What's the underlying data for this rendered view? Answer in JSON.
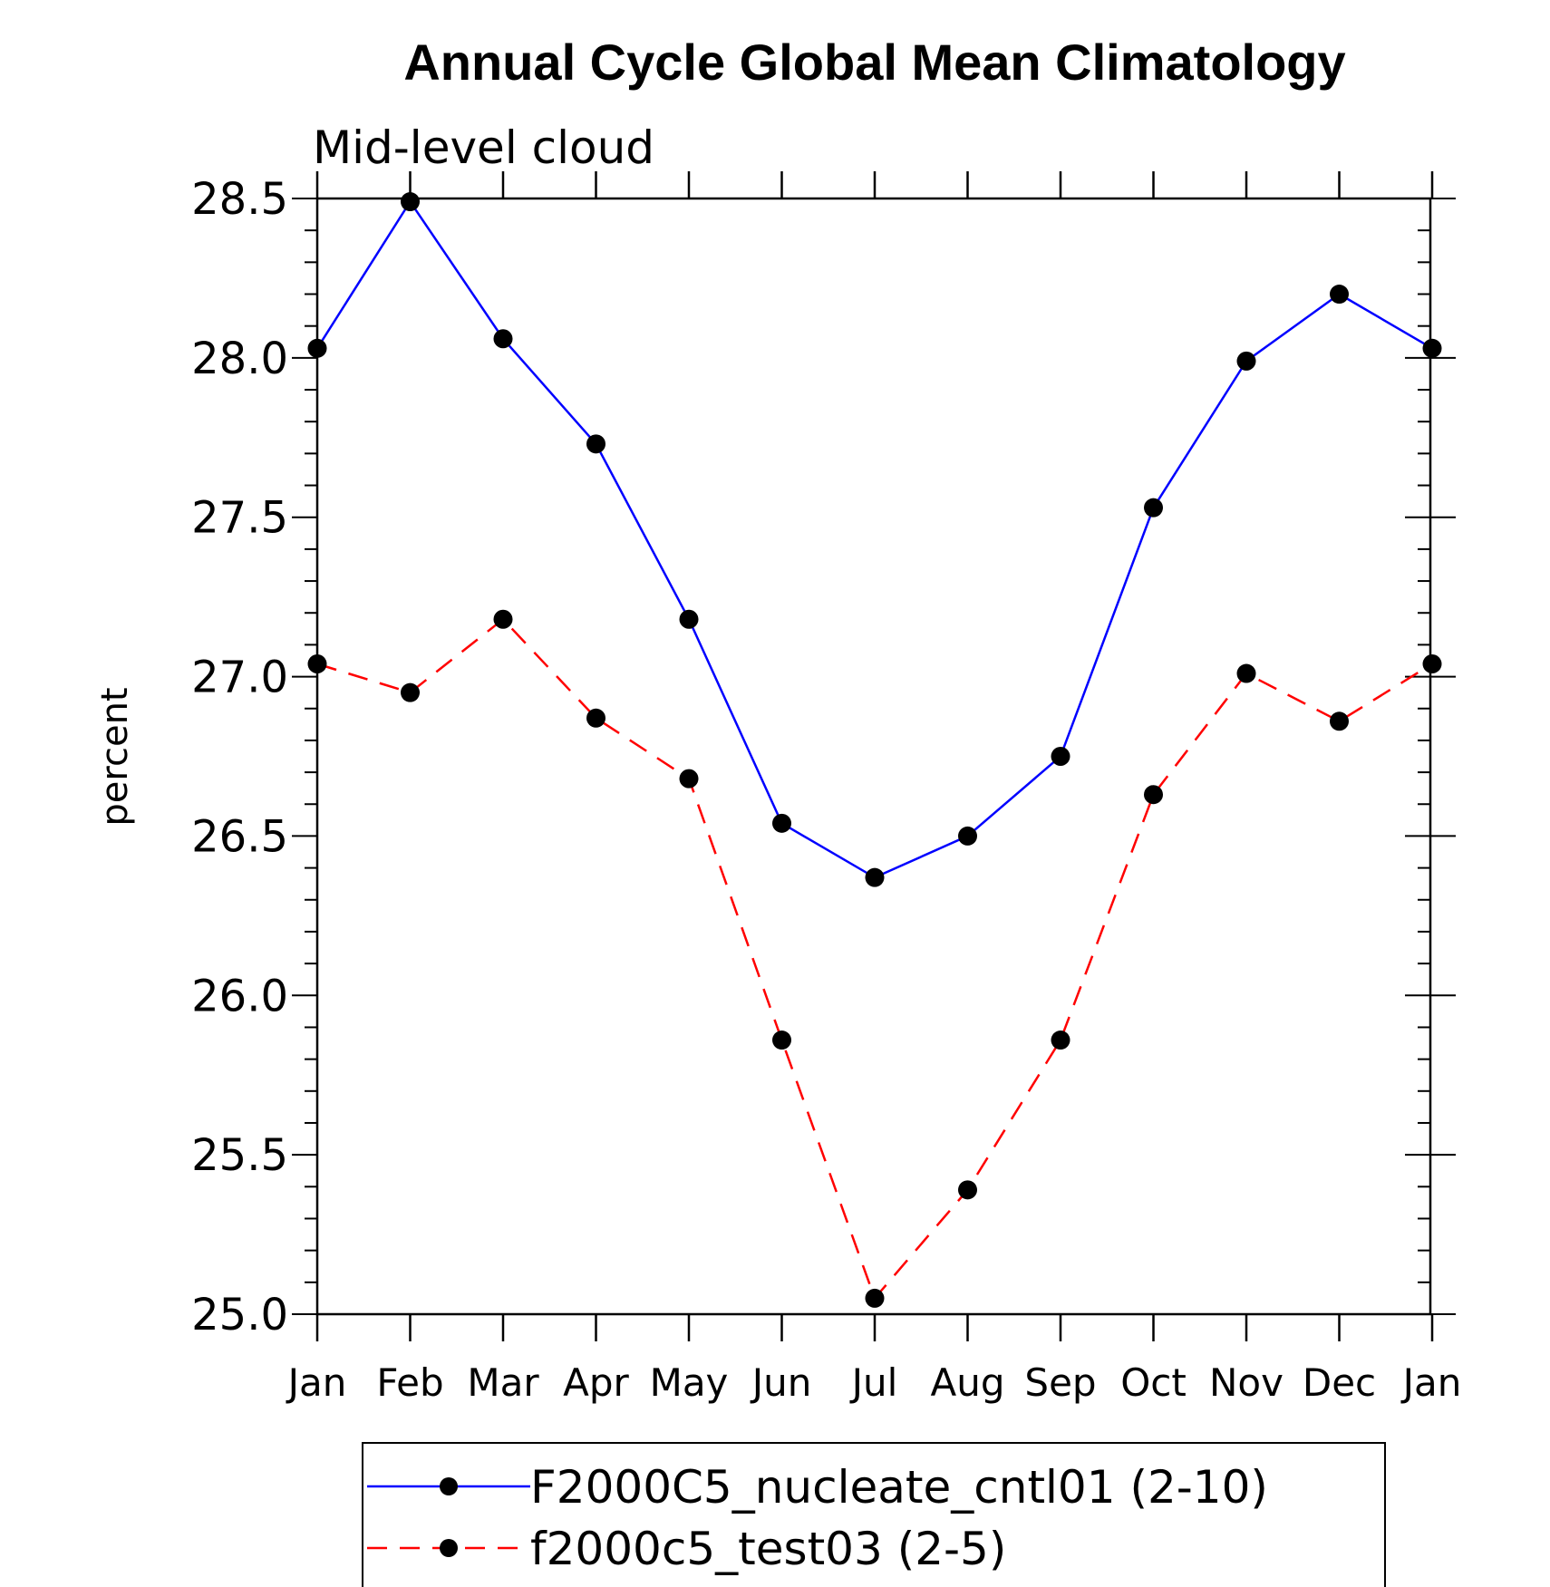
{
  "chart_data": {
    "type": "line",
    "title": "Annual Cycle Global Mean Climatology",
    "subtitle": "Mid-level cloud",
    "xlabel": "",
    "ylabel": "percent",
    "ylim": [
      25.0,
      28.5
    ],
    "yticks": [
      "25.0",
      "25.5",
      "26.0",
      "26.5",
      "27.0",
      "27.5",
      "28.0",
      "28.5"
    ],
    "categories": [
      "Jan",
      "Feb",
      "Mar",
      "Apr",
      "May",
      "Jun",
      "Jul",
      "Aug",
      "Sep",
      "Oct",
      "Nov",
      "Dec",
      "Jan"
    ],
    "series": [
      {
        "name": "F2000C5_nucleate_cntl01 (2-10)",
        "color": "#0000ff",
        "dash": "solid",
        "marker": "filled-circle",
        "values": [
          28.03,
          28.49,
          28.06,
          27.73,
          27.18,
          26.54,
          26.37,
          26.5,
          26.75,
          27.53,
          27.99,
          28.2,
          28.03
        ]
      },
      {
        "name": "f2000c5_test03 (2-5)",
        "color": "#ff0000",
        "dash": "dashed",
        "marker": "filled-circle",
        "values": [
          27.04,
          26.95,
          27.18,
          26.87,
          26.68,
          25.86,
          25.05,
          25.39,
          25.86,
          26.63,
          27.01,
          26.86,
          27.04
        ]
      }
    ],
    "legend": {
      "position": "bottom-center",
      "frame": true
    },
    "grid": false
  }
}
